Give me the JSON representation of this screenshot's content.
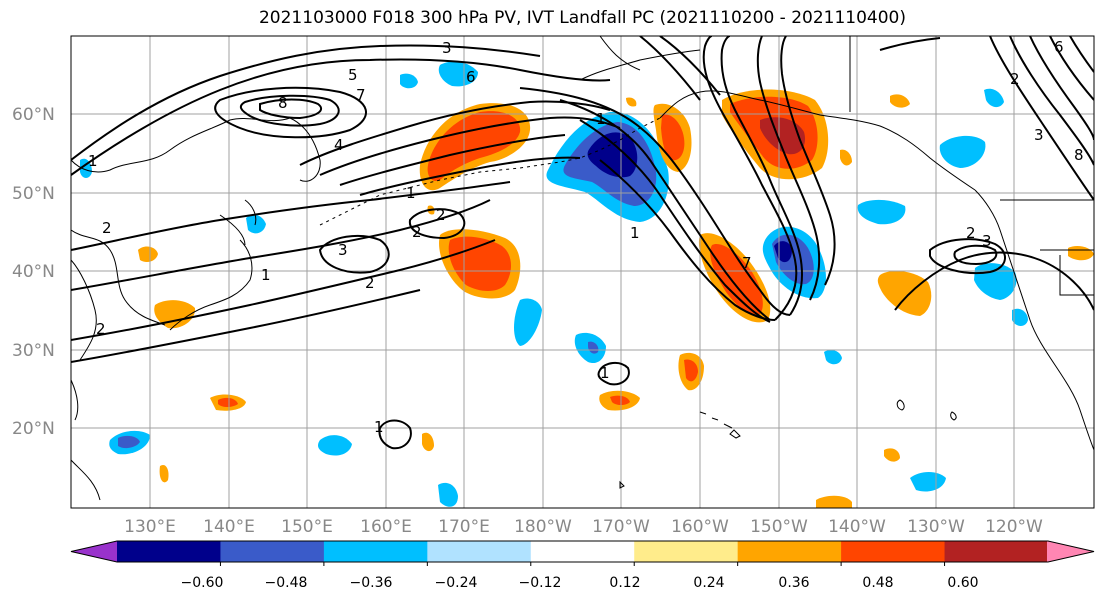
{
  "title": "2021103000 F018 300 hPa PV, IVT Landfall PC (2021110200 - 2021110400)",
  "lat_labels": [
    "60°N",
    "50°N",
    "40°N",
    "30°N",
    "20°N"
  ],
  "lon_labels": [
    "130°E",
    "140°E",
    "150°E",
    "160°E",
    "170°E",
    "180°W",
    "170°W",
    "160°W",
    "150°W",
    "140°W",
    "130°W",
    "120°W"
  ],
  "colorbar": {
    "colors": [
      "#9932cc",
      "#00008b",
      "#3a5bc9",
      "#00bfff",
      "#b0e2ff",
      "#ffffff",
      "#ffec8b",
      "#ffa500",
      "#ff4500",
      "#b22222",
      "#ff86b3"
    ],
    "tick_labels": [
      "−0.60",
      "−0.48",
      "−0.36",
      "−0.24",
      "−0.12",
      "0.12",
      "0.24",
      "0.36",
      "0.48",
      "0.60"
    ]
  },
  "pv_contour_labels": [
    "1",
    "2",
    "3",
    "4",
    "5",
    "6",
    "7",
    "8",
    "2",
    "1",
    "2",
    "3",
    "2",
    "2",
    "1",
    "7",
    "1",
    "1",
    "1",
    "1",
    "2",
    "3",
    "6",
    "8",
    "3",
    "2"
  ]
}
